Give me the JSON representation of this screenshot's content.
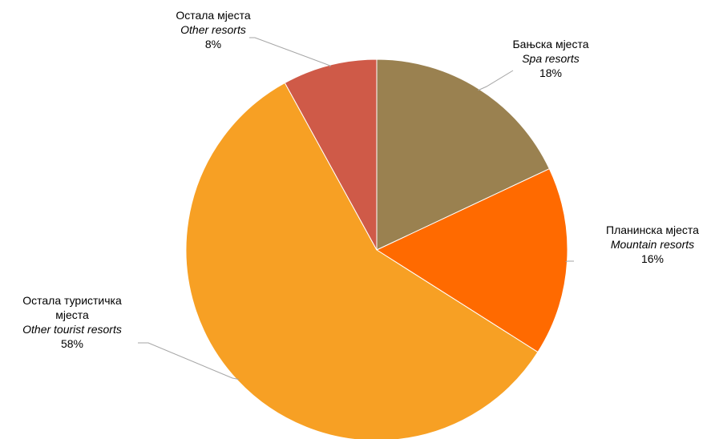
{
  "chart_data": {
    "type": "pie",
    "start_angle_deg": 0,
    "direction": "clockwise",
    "slices": [
      {
        "label": "Бањска мјеста",
        "label_en": "Spa resorts",
        "value": 18,
        "value_label": "18%",
        "color": "#9A8150"
      },
      {
        "label": "Планинска мјеста",
        "label_en": "Mountain resorts",
        "value": 16,
        "value_label": "16%",
        "color": "#FF6A00"
      },
      {
        "label": "Остала туристичка мјеста",
        "label_en": "Other tourist resorts",
        "value": 58,
        "value_label": "58%",
        "color": "#F7A024"
      },
      {
        "label": "Остала мјеста",
        "label_en": "Other resorts",
        "value": 8,
        "value_label": "8%",
        "color": "#CF5A48"
      }
    ]
  }
}
